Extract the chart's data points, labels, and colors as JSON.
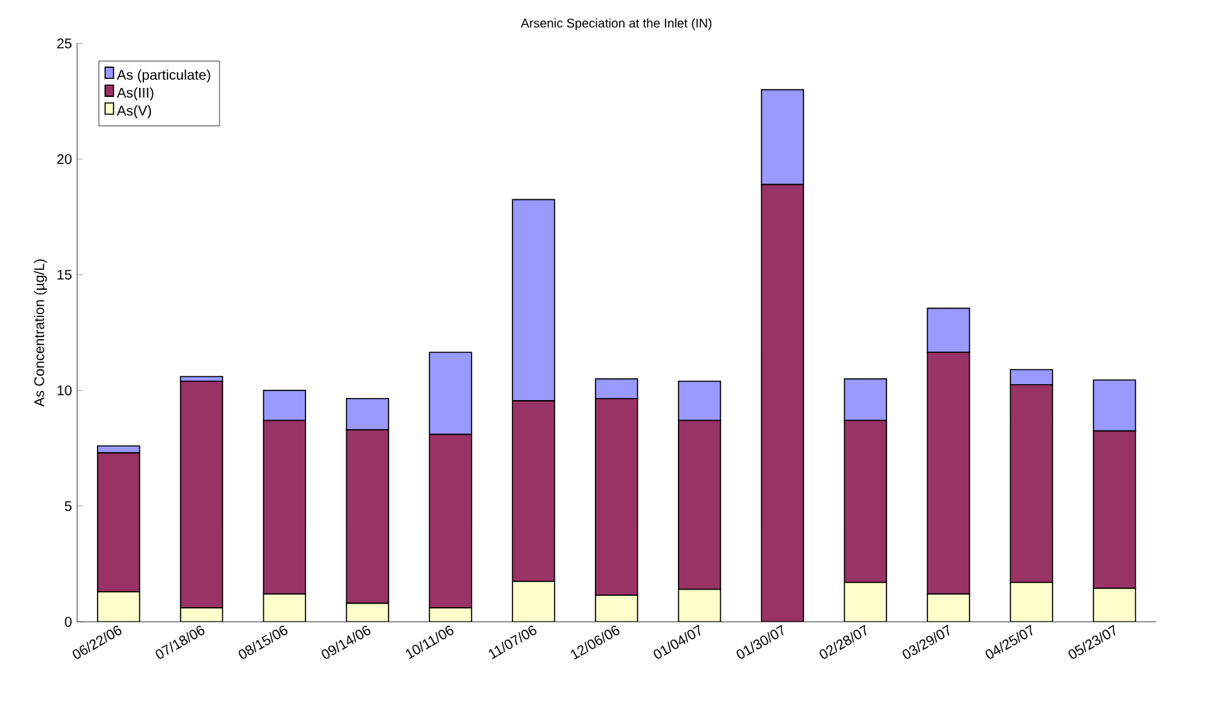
{
  "chart_data": {
    "type": "bar",
    "stacked": true,
    "title": "Arsenic Speciation at the Inlet (IN)",
    "ylabel": "As Concentration (µg/L)",
    "categories": [
      "06/22/06",
      "07/18/06",
      "08/15/06",
      "09/14/06",
      "10/11/06",
      "11/07/06",
      "12/06/06",
      "01/04/07",
      "01/30/07",
      "02/28/07",
      "03/29/07",
      "04/25/07",
      "05/23/07"
    ],
    "series": [
      {
        "name": "As(V)",
        "color": "#ffffcc",
        "values": [
          1.3,
          0.6,
          1.2,
          0.8,
          0.6,
          1.75,
          1.15,
          1.4,
          0,
          1.7,
          1.2,
          1.7,
          1.45
        ]
      },
      {
        "name": "As(III)",
        "color": "#993366",
        "values": [
          6.0,
          9.8,
          7.5,
          7.5,
          7.5,
          7.8,
          8.5,
          7.3,
          18.9,
          7.0,
          10.45,
          8.55,
          6.8
        ]
      },
      {
        "name": "As (particulate)",
        "color": "#9999ff",
        "values": [
          0.3,
          0.2,
          1.3,
          1.35,
          3.55,
          8.7,
          0.85,
          1.7,
          4.1,
          1.8,
          1.9,
          0.65,
          2.2
        ]
      }
    ],
    "ylim": [
      0,
      25
    ],
    "yticks": [
      0,
      5,
      10,
      15,
      20,
      25
    ],
    "grid": false,
    "legend": "top left"
  }
}
